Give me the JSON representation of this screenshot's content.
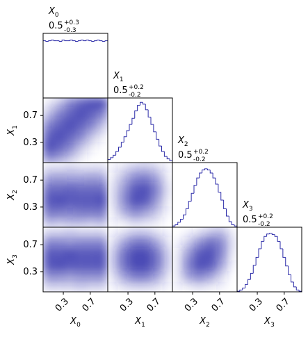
{
  "chart_data": {
    "type": "corner",
    "color": "#2a2aa8",
    "bins": [
      0,
      0.04,
      0.08,
      0.12,
      0.16,
      0.2,
      0.24,
      0.28,
      0.32,
      0.36,
      0.4,
      0.44,
      0.48,
      0.52,
      0.56,
      0.6,
      0.64,
      0.68,
      0.72,
      0.76,
      0.8,
      0.84,
      0.88,
      0.92,
      0.96
    ],
    "xlim": [
      0,
      0.96
    ],
    "ylim": [
      0,
      0.96
    ],
    "hist_ylim": [
      0,
      1.05
    ],
    "ticks": [
      0.3,
      0.7
    ],
    "variables": [
      {
        "label": "X",
        "subscript": "0",
        "median": 0.5,
        "plus": "+0.3",
        "minus": "-0.3",
        "counts": [
          0.93,
          0.92,
          0.93,
          0.94,
          0.93,
          0.93,
          0.92,
          0.94,
          0.93,
          0.93,
          0.94,
          0.93,
          0.92,
          0.93,
          0.94,
          0.93,
          0.94,
          0.93,
          0.92,
          0.93,
          0.94,
          0.93,
          0.92,
          0.93
        ]
      },
      {
        "label": "X",
        "subscript": "1",
        "median": 0.5,
        "plus": "+0.2",
        "minus": "-0.2",
        "counts": [
          0.05,
          0.08,
          0.12,
          0.18,
          0.25,
          0.33,
          0.42,
          0.52,
          0.62,
          0.72,
          0.84,
          0.93,
          0.98,
          0.95,
          0.86,
          0.74,
          0.62,
          0.5,
          0.38,
          0.27,
          0.18,
          0.1,
          0.06,
          0.03
        ]
      },
      {
        "label": "X",
        "subscript": "2",
        "median": 0.5,
        "plus": "+0.2",
        "minus": "-0.2",
        "counts": [
          0.02,
          0.04,
          0.08,
          0.13,
          0.2,
          0.3,
          0.42,
          0.55,
          0.68,
          0.8,
          0.88,
          0.93,
          0.95,
          0.93,
          0.88,
          0.8,
          0.7,
          0.57,
          0.44,
          0.3,
          0.18,
          0.09,
          0.04,
          0.02
        ]
      },
      {
        "label": "X",
        "subscript": "3",
        "median": 0.5,
        "plus": "+0.2",
        "minus": "-0.2",
        "counts": [
          0.01,
          0.03,
          0.06,
          0.12,
          0.2,
          0.3,
          0.43,
          0.56,
          0.7,
          0.82,
          0.9,
          0.94,
          0.95,
          0.93,
          0.9,
          0.82,
          0.7,
          0.56,
          0.42,
          0.28,
          0.16,
          0.08,
          0.03,
          0.01
        ]
      }
    ],
    "density": [
      [
        [
          [
            0.1,
            0.3,
            0.6,
            0.8,
            0.9,
            0.9
          ],
          [
            0.3,
            0.6,
            0.8,
            0.9,
            0.8,
            0.6
          ],
          [
            0.6,
            0.8,
            0.9,
            0.8,
            0.6,
            0.3
          ],
          [
            0.8,
            0.9,
            0.8,
            0.6,
            0.3,
            0.1
          ],
          [
            0.9,
            0.8,
            0.6,
            0.3,
            0.1,
            0
          ],
          [
            0.6,
            0.5,
            0.3,
            0.1,
            0,
            0
          ]
        ]
      ],
      [
        [
          [
            0.15,
            0.15,
            0.2,
            0.15,
            0.15,
            0.15
          ],
          [
            0.45,
            0.5,
            0.45,
            0.45,
            0.5,
            0.45
          ],
          [
            0.75,
            0.75,
            0.8,
            0.75,
            0.75,
            0.75
          ],
          [
            0.85,
            0.9,
            0.85,
            0.85,
            0.85,
            0.9
          ],
          [
            0.7,
            0.7,
            0.65,
            0.7,
            0.7,
            0.7
          ],
          [
            0.35,
            0.3,
            0.35,
            0.35,
            0.3,
            0.35
          ]
        ],
        [
          [
            0.05,
            0.15,
            0.25,
            0.3,
            0.2,
            0.05
          ],
          [
            0.1,
            0.35,
            0.6,
            0.65,
            0.45,
            0.1
          ],
          [
            0.15,
            0.5,
            0.85,
            0.9,
            0.6,
            0.15
          ],
          [
            0.15,
            0.55,
            0.9,
            0.85,
            0.5,
            0.1
          ],
          [
            0.1,
            0.4,
            0.6,
            0.5,
            0.3,
            0.05
          ],
          [
            0.05,
            0.1,
            0.2,
            0.15,
            0.1,
            0
          ]
        ]
      ],
      [
        [
          [
            0.2,
            0.2,
            0.25,
            0.2,
            0.2,
            0.2
          ],
          [
            0.6,
            0.6,
            0.55,
            0.6,
            0.6,
            0.6
          ],
          [
            0.85,
            0.85,
            0.9,
            0.85,
            0.85,
            0.85
          ],
          [
            0.85,
            0.9,
            0.85,
            0.85,
            0.85,
            0.85
          ],
          [
            0.55,
            0.55,
            0.5,
            0.55,
            0.55,
            0.55
          ],
          [
            0.2,
            0.2,
            0.2,
            0.25,
            0.2,
            0.2
          ]
        ],
        [
          [
            0.05,
            0.15,
            0.25,
            0.25,
            0.15,
            0.05
          ],
          [
            0.15,
            0.45,
            0.7,
            0.7,
            0.45,
            0.15
          ],
          [
            0.25,
            0.7,
            0.95,
            0.95,
            0.7,
            0.25
          ],
          [
            0.25,
            0.7,
            0.95,
            0.95,
            0.7,
            0.25
          ],
          [
            0.15,
            0.45,
            0.65,
            0.65,
            0.45,
            0.15
          ],
          [
            0.05,
            0.15,
            0.2,
            0.2,
            0.15,
            0.05
          ]
        ],
        [
          [
            0,
            0.05,
            0.15,
            0.3,
            0.35,
            0.1
          ],
          [
            0.05,
            0.25,
            0.55,
            0.75,
            0.6,
            0.15
          ],
          [
            0.1,
            0.5,
            0.85,
            0.9,
            0.6,
            0.1
          ],
          [
            0.1,
            0.6,
            0.9,
            0.85,
            0.45,
            0.05
          ],
          [
            0.1,
            0.45,
            0.6,
            0.45,
            0.2,
            0
          ],
          [
            0.05,
            0.1,
            0.15,
            0.1,
            0.05,
            0
          ]
        ]
      ]
    ]
  }
}
